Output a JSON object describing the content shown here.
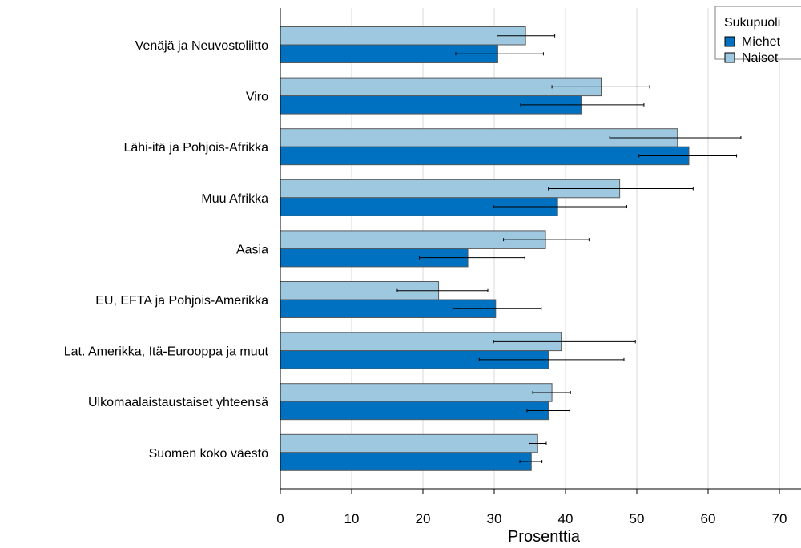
{
  "chart_data": {
    "type": "bar",
    "orientation": "horizontal",
    "title": "",
    "xlabel": "Prosenttia",
    "ylabel": "",
    "xlim": [
      0,
      73
    ],
    "xticks": [
      0,
      10,
      20,
      30,
      40,
      50,
      60,
      70
    ],
    "grid": "vertical",
    "legend": {
      "title": "Sukupuoli",
      "position": "top-right"
    },
    "categories": [
      "Venäjä ja Neuvostoliitto",
      "Viro",
      "Lähi-itä ja Pohjois-Afrikka",
      "Muu Afrikka",
      "Aasia",
      "EU, EFTA ja Pohjois-Amerikka",
      "Lat. Amerikka, Itä-Eurooppa ja muut",
      "Ulkomaalaistaustaiset yhteensä",
      "Suomen koko väestö"
    ],
    "series": [
      {
        "name": "Miehet",
        "color": "#0070c0",
        "values": [
          30.5,
          42.2,
          57.3,
          38.9,
          26.3,
          30.2,
          37.6,
          37.6,
          35.2
        ],
        "ci_low": [
          24.6,
          33.7,
          50.3,
          29.9,
          19.5,
          24.2,
          27.9,
          34.6,
          33.6
        ],
        "ci_high": [
          36.9,
          51.0,
          64.0,
          48.6,
          34.3,
          36.6,
          48.2,
          40.6,
          36.7
        ]
      },
      {
        "name": "Naiset",
        "color": "#9dc8e0",
        "values": [
          34.4,
          45.0,
          55.7,
          47.6,
          37.2,
          22.2,
          39.4,
          38.1,
          36.1
        ],
        "ci_low": [
          30.4,
          38.1,
          46.2,
          37.6,
          31.3,
          16.4,
          29.9,
          35.4,
          34.9
        ],
        "ci_high": [
          38.5,
          51.8,
          64.6,
          57.9,
          43.3,
          29.1,
          49.8,
          40.7,
          37.3
        ]
      }
    ]
  }
}
